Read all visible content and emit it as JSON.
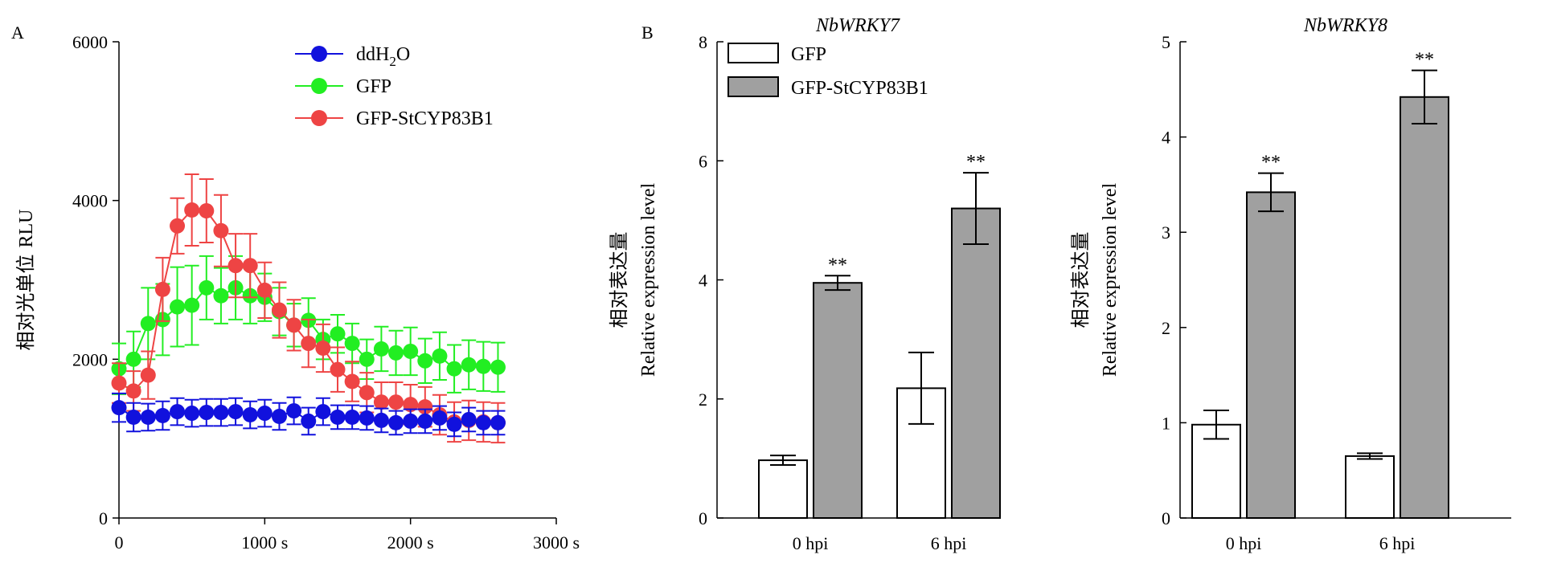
{
  "panels": {
    "a_letter": "A",
    "b_letter": "B"
  },
  "chart_data": [
    {
      "id": "A",
      "type": "line",
      "ylabel_cn": "相对光单位",
      "ylabel_en": "RLU",
      "xlim": [
        0,
        3000
      ],
      "ylim": [
        0,
        6000
      ],
      "xticks": [
        0,
        1000,
        2000,
        3000
      ],
      "xtick_labels": [
        "0",
        "1000 s",
        "2000 s",
        "3000 s"
      ],
      "yticks": [
        0,
        2000,
        4000,
        6000
      ],
      "ytick_labels": [
        "0",
        "2000",
        "4000",
        "6000"
      ],
      "legend": {
        "position": "top-center"
      },
      "x": [
        0,
        100,
        200,
        300,
        400,
        500,
        600,
        700,
        800,
        900,
        1000,
        1100,
        1200,
        1300,
        1400,
        1500,
        1600,
        1700,
        1800,
        1900,
        2000,
        2100,
        2200,
        2300,
        2400,
        2500,
        2600
      ],
      "series": [
        {
          "name": "GFP",
          "color": "#22ee22",
          "values": [
            1880,
            2000,
            2450,
            2500,
            2660,
            2680,
            2900,
            2800,
            2900,
            2800,
            2780,
            2600,
            2430,
            2490,
            2250,
            2320,
            2200,
            2000,
            2130,
            2080,
            2100,
            1980,
            2040,
            1880,
            1930,
            1910,
            1900
          ],
          "errors": [
            320,
            350,
            450,
            450,
            500,
            500,
            400,
            350,
            400,
            350,
            300,
            300,
            270,
            280,
            250,
            240,
            250,
            250,
            280,
            280,
            300,
            280,
            300,
            300,
            310,
            310,
            310
          ]
        },
        {
          "name": "GFP-StCYP83B1",
          "color": "#ee4444",
          "values": [
            1700,
            1600,
            1800,
            2880,
            3680,
            3880,
            3870,
            3620,
            3180,
            3180,
            2870,
            2620,
            2430,
            2200,
            2140,
            1870,
            1720,
            1580,
            1460,
            1460,
            1430,
            1400,
            1300,
            1210,
            1230,
            1210,
            1200
          ],
          "errors": [
            250,
            250,
            300,
            400,
            350,
            450,
            400,
            450,
            400,
            400,
            350,
            350,
            320,
            300,
            300,
            280,
            250,
            250,
            250,
            250,
            250,
            250,
            250,
            250,
            250,
            250,
            250
          ]
        },
        {
          "name": "ddH2O",
          "color": "#1111dd",
          "values": [
            1390,
            1270,
            1270,
            1290,
            1340,
            1320,
            1330,
            1330,
            1340,
            1300,
            1320,
            1280,
            1350,
            1220,
            1340,
            1270,
            1270,
            1260,
            1230,
            1200,
            1220,
            1220,
            1260,
            1180,
            1240,
            1200,
            1200
          ],
          "errors": [
            180,
            180,
            170,
            180,
            170,
            170,
            170,
            170,
            170,
            170,
            170,
            170,
            170,
            170,
            170,
            150,
            150,
            150,
            150,
            150,
            150,
            150,
            150,
            150,
            150,
            150,
            150
          ]
        }
      ],
      "legend_items": [
        {
          "label_main": "ddH",
          "label_sub": "2",
          "label_tail": "O",
          "color": "#1111dd"
        },
        {
          "label_main": "GFP",
          "label_sub": "",
          "label_tail": "",
          "color": "#22ee22"
        },
        {
          "label_main": "GFP-StCYP83B1",
          "label_sub": "",
          "label_tail": "",
          "color": "#ee4444"
        }
      ]
    },
    {
      "id": "B1",
      "type": "bar",
      "title": "NbWRKY7",
      "ylabel_cn": "相对表达量",
      "ylabel_en": "Relative expression level",
      "categories": [
        "0 hpi",
        "6 hpi"
      ],
      "ylim": [
        0,
        8
      ],
      "yticks": [
        0,
        2,
        4,
        6,
        8
      ],
      "legend": {
        "position": "top-left"
      },
      "series": [
        {
          "name": "GFP",
          "color": "#ffffff",
          "values": [
            0.97,
            2.18
          ],
          "errors": [
            0.08,
            0.6
          ],
          "stars": [
            "",
            ""
          ]
        },
        {
          "name": "GFP-StCYP83B1",
          "color": "#a0a0a0",
          "values": [
            3.95,
            5.2
          ],
          "errors": [
            0.12,
            0.6
          ],
          "stars": [
            "**",
            "**"
          ]
        }
      ]
    },
    {
      "id": "B2",
      "type": "bar",
      "title": "NbWRKY8",
      "ylabel_cn": "相对表达量",
      "ylabel_en": "Relative expression level",
      "categories": [
        "0 hpi",
        "6 hpi"
      ],
      "ylim": [
        0,
        5
      ],
      "yticks": [
        0,
        1,
        2,
        3,
        4,
        5
      ],
      "series": [
        {
          "name": "GFP",
          "color": "#ffffff",
          "values": [
            0.98,
            0.65
          ],
          "errors": [
            0.15,
            0.03
          ],
          "stars": [
            "",
            ""
          ]
        },
        {
          "name": "GFP-StCYP83B1",
          "color": "#a0a0a0",
          "values": [
            3.42,
            4.42
          ],
          "errors": [
            0.2,
            0.28
          ],
          "stars": [
            "**",
            "**"
          ]
        }
      ]
    }
  ]
}
